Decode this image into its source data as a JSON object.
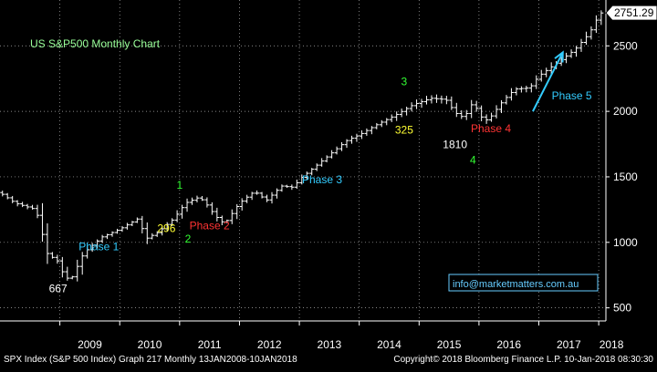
{
  "chart_data": {
    "type": "bar",
    "subtype": "ohlc",
    "title": "US S&P500 Monthly Chart",
    "ylim": [
      400,
      2850
    ],
    "yticks": [
      500,
      1000,
      1500,
      2000,
      2500
    ],
    "xticks": [
      {
        "label": "2009",
        "x": 2009.0
      },
      {
        "label": "2010",
        "x": 2010.0
      },
      {
        "label": "2011",
        "x": 2011.0
      },
      {
        "label": "2012",
        "x": 2012.0
      },
      {
        "label": "2013",
        "x": 2013.0
      },
      {
        "label": "2014",
        "x": 2014.0
      },
      {
        "label": "2015",
        "x": 2015.0
      },
      {
        "label": "2016",
        "x": 2016.0
      },
      {
        "label": "2017",
        "x": 2017.0
      },
      {
        "label": "2018",
        "x": 2018.0
      }
    ],
    "xlim": [
      2008.0,
      2018.12
    ],
    "last_price": "2751.29",
    "anchors": [
      [
        2008.0,
        1380
      ],
      [
        2008.25,
        1300
      ],
      [
        2008.6,
        1250
      ],
      [
        2008.8,
        900
      ],
      [
        2008.95,
        870
      ],
      [
        2009.0,
        800
      ],
      [
        2009.17,
        700
      ],
      [
        2009.4,
        920
      ],
      [
        2009.7,
        1040
      ],
      [
        2010.0,
        1100
      ],
      [
        2010.3,
        1180
      ],
      [
        2010.45,
        1030
      ],
      [
        2010.65,
        1080
      ],
      [
        2010.9,
        1180
      ],
      [
        2011.1,
        1300
      ],
      [
        2011.3,
        1340
      ],
      [
        2011.4,
        1320
      ],
      [
        2011.6,
        1200
      ],
      [
        2011.75,
        1140
      ],
      [
        2012.0,
        1300
      ],
      [
        2012.25,
        1390
      ],
      [
        2012.45,
        1320
      ],
      [
        2012.7,
        1430
      ],
      [
        2012.9,
        1420
      ],
      [
        2013.0,
        1480
      ],
      [
        2013.4,
        1630
      ],
      [
        2013.8,
        1780
      ],
      [
        2014.0,
        1820
      ],
      [
        2014.3,
        1900
      ],
      [
        2014.6,
        1970
      ],
      [
        2014.9,
        2050
      ],
      [
        2015.2,
        2100
      ],
      [
        2015.45,
        2090
      ],
      [
        2015.6,
        1990
      ],
      [
        2015.75,
        1950
      ],
      [
        2015.9,
        2070
      ],
      [
        2016.05,
        1950
      ],
      [
        2016.15,
        1930
      ],
      [
        2016.4,
        2080
      ],
      [
        2016.6,
        2170
      ],
      [
        2016.85,
        2180
      ],
      [
        2017.0,
        2270
      ],
      [
        2017.3,
        2370
      ],
      [
        2017.6,
        2470
      ],
      [
        2017.85,
        2600
      ],
      [
        2018.02,
        2751
      ]
    ],
    "annotations": [
      {
        "text": "667",
        "x": 2008.97,
        "y": 620,
        "color": "#ffffff"
      },
      {
        "text": "Phase 1",
        "x": 2009.65,
        "y": 940,
        "color": "#33ccff"
      },
      {
        "text": "296",
        "x": 2010.78,
        "y": 1080,
        "color": "#ffff33"
      },
      {
        "text": "1",
        "x": 2011.0,
        "y": 1410,
        "color": "#33ff33"
      },
      {
        "text": "2",
        "x": 2011.14,
        "y": 1000,
        "color": "#33ff33"
      },
      {
        "text": "Phase 2",
        "x": 2011.5,
        "y": 1100,
        "color": "#ff3333"
      },
      {
        "text": "Phase 3",
        "x": 2013.38,
        "y": 1450,
        "color": "#33ccff"
      },
      {
        "text": "3",
        "x": 2014.75,
        "y": 2200,
        "color": "#33ff33"
      },
      {
        "text": "325",
        "x": 2014.75,
        "y": 1830,
        "color": "#ffff33"
      },
      {
        "text": "1810",
        "x": 2015.6,
        "y": 1720,
        "color": "#ffffff"
      },
      {
        "text": "Phase 4",
        "x": 2016.2,
        "y": 1840,
        "color": "#ff3333"
      },
      {
        "text": "4",
        "x": 2015.9,
        "y": 1600,
        "color": "#33ff33"
      },
      {
        "text": "Phase 5",
        "x": 2017.55,
        "y": 2090,
        "color": "#33ccff"
      }
    ],
    "arrow": {
      "from": [
        2016.9,
        2000
      ],
      "to": [
        2017.4,
        2450
      ],
      "color": "#33ccff"
    },
    "watermark": "info@marketmatters.com.au",
    "colors": {
      "background": "#000000",
      "grid": "#ffffff",
      "bars": "#ffffff",
      "title": "#99ff99",
      "watermark": "#66ccff"
    }
  },
  "footer": {
    "left": "SPX Index (S&P 500 Index) Graph 217  Monthly 13JAN2008-10JAN2018",
    "right": "Copyright© 2018 Bloomberg Finance L.P.    10-Jan-2018 08:30:30"
  }
}
